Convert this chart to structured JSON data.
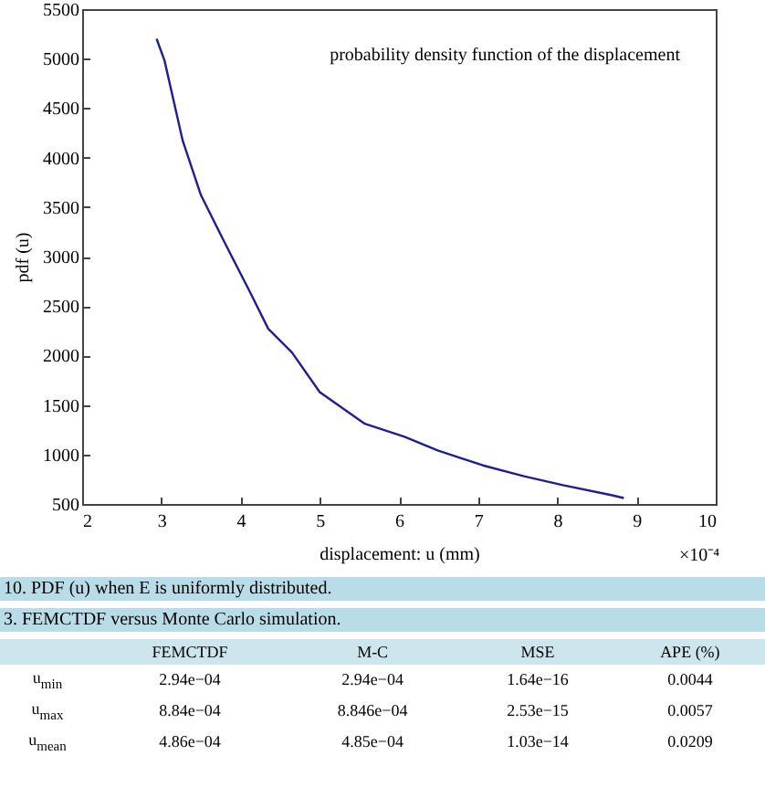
{
  "chart_data": {
    "type": "line",
    "title": "probability density function of the displacement",
    "xlabel": "displacement: u (mm)",
    "ylabel": "pdf (u)",
    "x": [
      2.94,
      3.04,
      3.27,
      3.5,
      3.8,
      4.12,
      4.35,
      4.65,
      5.0,
      5.57,
      6.07,
      6.49,
      7.06,
      7.58,
      8.07,
      8.68,
      8.84
    ],
    "series": [
      {
        "color": "#1f1f8f",
        "values": [
          5200,
          4980,
          4170,
          3620,
          3140,
          2640,
          2270,
          2030,
          1630,
          1310,
          1180,
          1040,
          890,
          780,
          690,
          590,
          560
        ]
      }
    ],
    "xlim": [
      2,
      10
    ],
    "xticks": [
      2,
      3,
      4,
      5,
      6,
      7,
      8,
      9,
      10
    ],
    "ylim": [
      500,
      5500
    ],
    "yticks": [
      500,
      1000,
      1500,
      2000,
      2500,
      3000,
      3500,
      4000,
      4500,
      5000,
      5500
    ],
    "grid": false,
    "marker": "none",
    "line_style": "solid",
    "annotations": [
      "×10⁻⁴",
      "10. PDF (u) when E is uniformly distributed.",
      "3. FEMCTDF versus Monte Carlo simulation.",
      "\tFEMCTDF\tM-C\tMSE\tAPE (%)",
      "u$_{min}$\t2.94e−04\t2.94e−04\t1.64e−16\t0.0044",
      "u$_{max}$\t8.84e−04\t8.846e−04\t2.53e−15\t0.0057",
      "u$_{mean}$\t4.86e−04\t4.85e−04\t1.03e−14\t0.0209"
    ]
  }
}
